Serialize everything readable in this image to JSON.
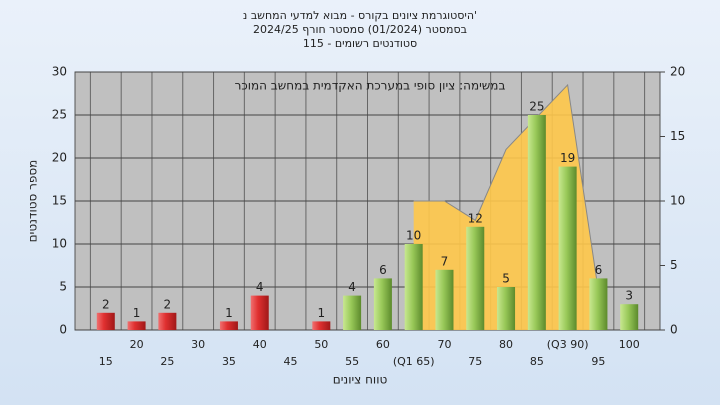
{
  "chart_data": {
    "type": "bar",
    "title": "היסטוגרמת ציונים בקורס - מבוא למדעי המחשב נ'",
    "subtitle": [
      "בסמסטר (01/2024) סמסטר חורף 2024/25",
      "סטודנטים רשומים - 115"
    ],
    "annotation": "במשימה: ציון סופי במערכת האקדמית במחשב המוכר",
    "x_label": "טווח ציונים",
    "y_label": "מספר סטודנטים",
    "categories": [
      "15",
      "20",
      "25",
      "30",
      "35",
      "40",
      "45",
      "50",
      "55",
      "60",
      "(Q1 65)",
      "70",
      "75",
      "80",
      "85",
      "(Q3 90)",
      "95",
      "100"
    ],
    "series": [
      {
        "values": [
          2,
          1,
          2,
          0,
          1,
          4,
          0,
          1,
          4,
          6,
          10,
          7,
          12,
          5,
          25,
          19,
          6,
          3
        ],
        "colors": [
          "#d93030",
          "#d93030",
          "#d93030",
          "#d93030",
          "#d93030",
          "#d93030",
          "#d93030",
          "#d93030",
          "#8dbf4e",
          "#8dbf4e",
          "#8dbf4e",
          "#8dbf4e",
          "#8dbf4e",
          "#8dbf4e",
          "#8dbf4e",
          "#8dbf4e",
          "#8dbf4e",
          "#8dbf4e"
        ]
      },
      {
        "type": "area",
        "axis": "y2",
        "color": "#ffc84a",
        "values": [
          null,
          null,
          null,
          null,
          null,
          null,
          null,
          null,
          null,
          null,
          10,
          10,
          8.5,
          14,
          16.5,
          19,
          3,
          null
        ]
      }
    ],
    "ylim": [
      0,
      30
    ],
    "yticks": [
      0,
      5,
      10,
      15,
      20,
      25,
      30
    ],
    "y2lim": [
      0,
      20
    ],
    "y2ticks": [
      0,
      5,
      10,
      15,
      20
    ],
    "grid": true
  }
}
